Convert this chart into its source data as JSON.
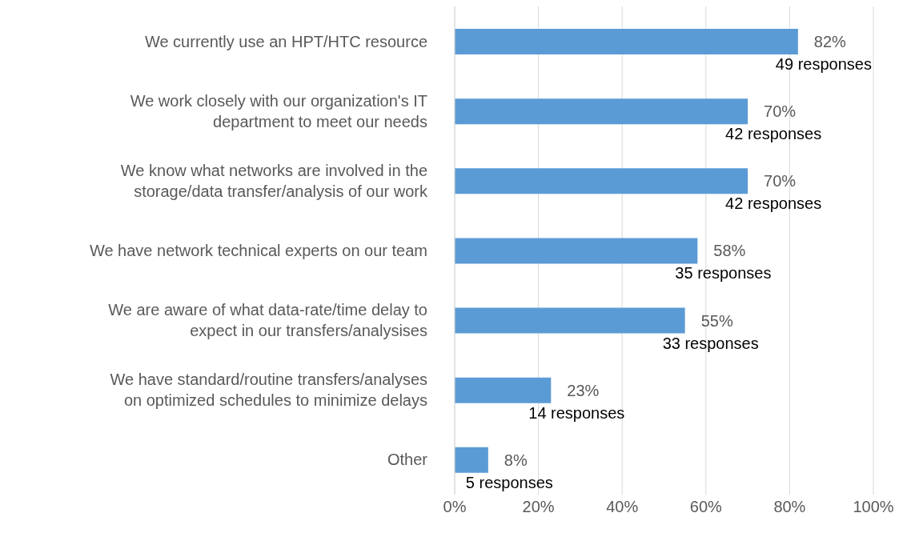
{
  "chart_data": {
    "type": "bar",
    "orientation": "horizontal",
    "categories": [
      "We currently use an HPT/HTC resource",
      "We work closely with our organization's IT department to meet our needs",
      "We know what networks are involved in the storage/data transfer/analysis of our work",
      "We have network technical experts on our team",
      "We are aware of what data-rate/time delay to expect in our transfers/analysises",
      "We have standard/routine transfers/analyses on optimized schedules to minimize delays",
      "Other"
    ],
    "values": [
      82,
      70,
      70,
      58,
      55,
      23,
      8
    ],
    "value_labels": [
      "82%\n49 responses",
      "70%\n42 responses",
      "70%\n42 responses",
      "58%\n35 responses",
      "55%\n33 responses",
      "23%\n14 responses",
      "8%\n5 responses"
    ],
    "color": "#5b9bd5",
    "xlim": [
      0,
      100
    ],
    "xticks": [
      {
        "value": 0,
        "label": "0%"
      },
      {
        "value": 20,
        "label": "20%"
      },
      {
        "value": 40,
        "label": "40%"
      },
      {
        "value": 60,
        "label": "60%"
      },
      {
        "value": 80,
        "label": "80%"
      },
      {
        "value": 100,
        "label": "100%"
      }
    ],
    "grid": "x"
  }
}
